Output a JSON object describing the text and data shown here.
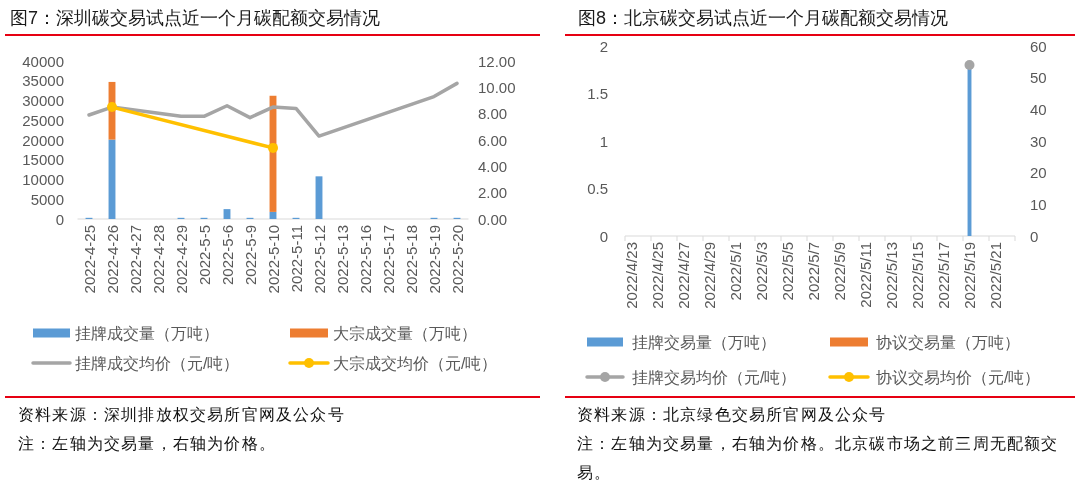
{
  "chart_data": [
    {
      "type": "bar",
      "title": "图7：深圳碳交易试点近一个月碳配额交易情况",
      "categories": [
        "2022-4-25",
        "2022-4-26",
        "2022-4-27",
        "2022-4-28",
        "2022-4-29",
        "2022-5-5",
        "2022-5-6",
        "2022-5-9",
        "2022-5-10",
        "2022-5-11",
        "2022-5-12",
        "2022-5-13",
        "2022-5-16",
        "2022-5-17",
        "2022-5-18",
        "2022-5-19",
        "2022-5-20"
      ],
      "series": [
        {
          "name": "挂牌成交量（万吨）",
          "color": "#5b9bd5",
          "values": [
            300,
            20100,
            null,
            null,
            300,
            300,
            2500,
            300,
            1800,
            300,
            10800,
            null,
            null,
            null,
            null,
            300,
            300
          ]
        },
        {
          "name": "大宗成交量（万吨）",
          "color": "#ed7d31",
          "values": [
            null,
            14600,
            null,
            null,
            null,
            null,
            null,
            null,
            29400,
            null,
            null,
            null,
            null,
            null,
            null,
            null,
            null
          ]
        },
        {
          "name": "挂牌成交均价（元/吨）",
          "type": "line",
          "axis": "y2",
          "marker": "none",
          "color": "#a5a5a5",
          "values": [
            7.9,
            8.5,
            null,
            null,
            7.8,
            7.8,
            8.6,
            7.7,
            8.5,
            8.4,
            6.3,
            null,
            null,
            null,
            null,
            9.3,
            10.3
          ]
        },
        {
          "name": "大宗成交均价（元/吨）",
          "type": "line",
          "axis": "y2",
          "marker": "circle",
          "color": "#ffc000",
          "values": [
            null,
            8.5,
            null,
            null,
            null,
            null,
            null,
            null,
            5.4,
            null,
            null,
            null,
            null,
            null,
            null,
            null,
            null
          ]
        }
      ],
      "stacked": true,
      "ylim": [
        0,
        40000
      ],
      "yticks": [
        0,
        5000,
        10000,
        15000,
        20000,
        25000,
        30000,
        35000,
        40000
      ],
      "y2lim": [
        0,
        12
      ],
      "y2ticks": [
        {
          "value": 0,
          "label": "0.00"
        },
        {
          "value": 2,
          "label": "2.00"
        },
        {
          "value": 4,
          "label": "4.00"
        },
        {
          "value": 6,
          "label": "6.00"
        },
        {
          "value": 8,
          "label": "8.00"
        },
        {
          "value": 10,
          "label": "10.00"
        },
        {
          "value": 12,
          "label": "12.00"
        }
      ],
      "legend": "bottom",
      "annotations": [
        "资料来源：深圳排放权交易所官网及公众号",
        "注：左轴为交易量，右轴为价格。"
      ]
    },
    {
      "type": "bar",
      "title": "图8：北京碳交易试点近一个月碳配额交易情况",
      "categories": [
        "2022/4/23",
        null,
        "2022/4/25",
        null,
        "2022/4/27",
        null,
        "2022/4/29",
        null,
        "2022/5/1",
        null,
        "2022/5/3",
        null,
        "2022/5/5",
        null,
        "2022/5/7",
        null,
        "2022/5/9",
        null,
        "2022/5/11",
        null,
        "2022/5/13",
        null,
        "2022/5/15",
        null,
        "2022/5/17",
        null,
        "2022/5/19",
        null,
        "2022/5/21",
        null
      ],
      "series": [
        {
          "name": "挂牌交易量（万吨）",
          "color": "#5b9bd5",
          "values": [
            null,
            null,
            null,
            null,
            null,
            null,
            null,
            null,
            null,
            null,
            null,
            null,
            null,
            null,
            null,
            null,
            null,
            null,
            null,
            null,
            null,
            null,
            null,
            null,
            null,
            null,
            1.8,
            null,
            null,
            null
          ]
        },
        {
          "name": "协议交易量（万吨）",
          "color": "#ed7d31",
          "values": [
            null,
            null,
            null,
            null,
            null,
            null,
            null,
            null,
            null,
            null,
            null,
            null,
            null,
            null,
            null,
            null,
            null,
            null,
            null,
            null,
            null,
            null,
            null,
            null,
            null,
            null,
            null,
            null,
            null,
            null
          ]
        },
        {
          "name": "挂牌交易均价（元/吨）",
          "type": "line",
          "axis": "y2",
          "marker": "circle",
          "color": "#a5a5a5",
          "values": [
            null,
            null,
            null,
            null,
            null,
            null,
            null,
            null,
            null,
            null,
            null,
            null,
            null,
            null,
            null,
            null,
            null,
            null,
            null,
            null,
            null,
            null,
            null,
            null,
            null,
            null,
            54,
            null,
            null,
            null
          ]
        },
        {
          "name": "协议交易均价（元/吨）",
          "type": "line",
          "axis": "y2",
          "marker": "circle",
          "color": "#ffc000",
          "values": [
            null,
            null,
            null,
            null,
            null,
            null,
            null,
            null,
            null,
            null,
            null,
            null,
            null,
            null,
            null,
            null,
            null,
            null,
            null,
            null,
            null,
            null,
            null,
            null,
            null,
            null,
            null,
            null,
            null,
            null
          ]
        }
      ],
      "stacked": true,
      "ylim": [
        0,
        2
      ],
      "yticks": [
        0,
        0.5,
        1,
        1.5,
        2
      ],
      "y2lim": [
        0,
        60
      ],
      "y2ticks": [
        0,
        10,
        20,
        30,
        40,
        50,
        60
      ],
      "legend": "bottom",
      "annotations": [
        "资料来源：北京绿色交易所官网及公众号",
        "注：左轴为交易量，右轴为价格。北京碳市场之前三周无配额交易。"
      ]
    }
  ]
}
